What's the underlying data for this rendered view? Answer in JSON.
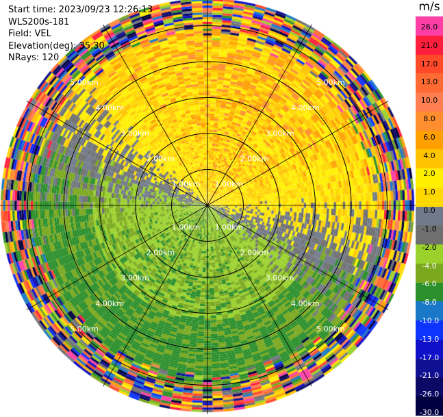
{
  "header": {
    "start_time": "Start time: 2023/09/23 12:26:13",
    "instrument": "WLS200s-181",
    "field": "Field: VEL",
    "elevation": "Elevation(deg): 35.30",
    "nrays": "NRays: 120"
  },
  "ring_labels": [
    "1.00km",
    "2.00km",
    "3.00km",
    "4.00km",
    "5.00km"
  ],
  "colorbar": {
    "unit": "m/s",
    "ticks": [
      "26.0",
      "21.0",
      "17.0",
      "13.0",
      "10.0",
      "8.0",
      "6.0",
      "4.0",
      "2.0",
      "1.0",
      "0.0",
      "-1.0",
      "-2.0",
      "-4.0",
      "-6.0",
      "-8.0",
      "-10.0",
      "-13.0",
      "-17.0",
      "-21.0",
      "-26.0",
      "-30.0"
    ],
    "colors": [
      "#ff3fa6",
      "#ff1f3d",
      "#ff4a2a",
      "#ff6a33",
      "#ff7e52",
      "#ff8f2e",
      "#ffa000",
      "#ffc400",
      "#fff000",
      "#ffd800",
      "#707a8a",
      "#6f6f6f",
      "#9ad12a",
      "#7aa81e",
      "#2b8f2b",
      "#1a78c8",
      "#0d34ff",
      "#1010c8",
      "#101092",
      "#0a0a66",
      "#000040"
    ]
  }
}
